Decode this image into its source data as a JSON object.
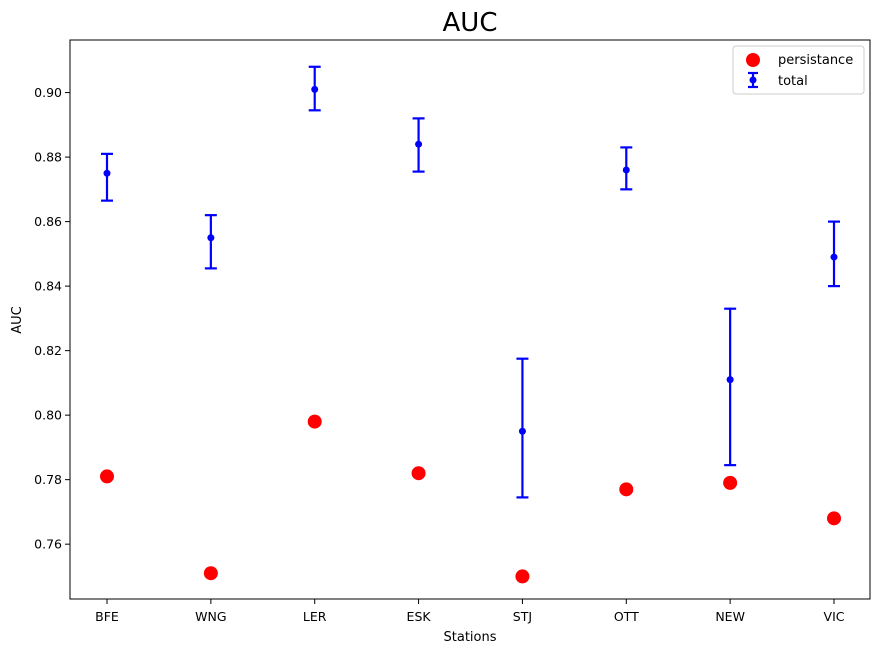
{
  "chart_data": {
    "type": "scatter",
    "title": "AUC",
    "xlabel": "Stations",
    "ylabel": "AUC",
    "categories": [
      "BFE",
      "WNG",
      "LER",
      "ESK",
      "STJ",
      "OTT",
      "NEW",
      "VIC"
    ],
    "ylim": [
      0.743,
      0.9163
    ],
    "yticks": [
      0.76,
      0.78,
      0.8,
      0.82,
      0.84,
      0.86,
      0.88,
      0.9
    ],
    "ytick_labels": [
      "0.76",
      "0.78",
      "0.80",
      "0.82",
      "0.84",
      "0.86",
      "0.88",
      "0.90"
    ],
    "grid": false,
    "legend_position": "upper right",
    "series": [
      {
        "name": "persistance",
        "kind": "scatter",
        "color": "#ff0000",
        "values": [
          0.781,
          0.751,
          0.798,
          0.782,
          0.75,
          0.777,
          0.779,
          0.768
        ]
      },
      {
        "name": "total",
        "kind": "errorbar",
        "color": "#0000ff",
        "values": [
          0.875,
          0.855,
          0.901,
          0.884,
          0.795,
          0.876,
          0.811,
          0.849
        ],
        "lower": [
          0.8665,
          0.8455,
          0.8945,
          0.8755,
          0.7745,
          0.87,
          0.7845,
          0.84
        ],
        "upper": [
          0.881,
          0.862,
          0.908,
          0.892,
          0.8175,
          0.883,
          0.833,
          0.86
        ]
      }
    ]
  }
}
